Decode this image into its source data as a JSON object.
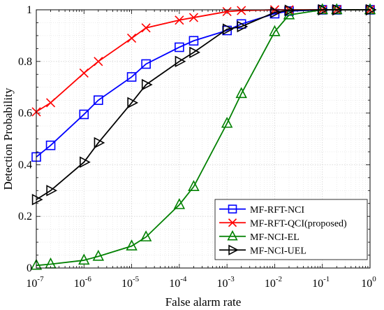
{
  "chart_data": {
    "type": "line",
    "title": "",
    "xlabel": "False alarm rate",
    "ylabel": "Detection Probability",
    "xscale": "log",
    "xlim": [
      1e-07,
      1
    ],
    "ylim": [
      0,
      1
    ],
    "grid": true,
    "legend_position": "bottom-right",
    "x_ticks": [
      {
        "value": 1e-07,
        "base": "10",
        "exp": "-7"
      },
      {
        "value": 1e-06,
        "base": "10",
        "exp": "-6"
      },
      {
        "value": 1e-05,
        "base": "10",
        "exp": "-5"
      },
      {
        "value": 0.0001,
        "base": "10",
        "exp": "-4"
      },
      {
        "value": 0.001,
        "base": "10",
        "exp": "-3"
      },
      {
        "value": 0.01,
        "base": "10",
        "exp": "-2"
      },
      {
        "value": 0.1,
        "base": "10",
        "exp": "-1"
      },
      {
        "value": 1,
        "base": "10",
        "exp": "0"
      }
    ],
    "y_ticks": [
      {
        "value": 0,
        "label": "0"
      },
      {
        "value": 0.2,
        "label": "0.2"
      },
      {
        "value": 0.4,
        "label": "0.4"
      },
      {
        "value": 0.6,
        "label": "0.6"
      },
      {
        "value": 0.8,
        "label": "0.8"
      },
      {
        "value": 1,
        "label": "1"
      }
    ],
    "series": [
      {
        "name": "MF-RFT-NCI",
        "color": "#0000ff",
        "marker": "square",
        "x": [
          1e-07,
          2e-07,
          1e-06,
          2e-06,
          1e-05,
          2e-05,
          0.0001,
          0.0002,
          0.001,
          0.002,
          0.01,
          0.02,
          0.1,
          0.2,
          1
        ],
        "y": [
          0.43,
          0.475,
          0.595,
          0.65,
          0.74,
          0.79,
          0.855,
          0.88,
          0.92,
          0.945,
          0.985,
          0.995,
          1.0,
          1.0,
          1.0
        ]
      },
      {
        "name": "MF-RFT-QCI(proposed)",
        "color": "#ff0000",
        "marker": "x",
        "x": [
          1e-07,
          2e-07,
          1e-06,
          2e-06,
          1e-05,
          2e-05,
          0.0001,
          0.0002,
          0.001,
          0.002,
          0.01,
          0.02,
          0.1,
          0.2,
          1
        ],
        "y": [
          0.605,
          0.64,
          0.755,
          0.8,
          0.89,
          0.93,
          0.96,
          0.97,
          0.993,
          0.997,
          1.0,
          1.0,
          1.0,
          1.0,
          1.0
        ]
      },
      {
        "name": "MF-NCI-EL",
        "color": "#008000",
        "marker": "triangle-up",
        "x": [
          1e-07,
          2e-07,
          1e-06,
          2e-06,
          1e-05,
          2e-05,
          0.0001,
          0.0002,
          0.001,
          0.002,
          0.01,
          0.02,
          0.1,
          0.2,
          1
        ],
        "y": [
          0.01,
          0.015,
          0.03,
          0.045,
          0.085,
          0.12,
          0.245,
          0.315,
          0.56,
          0.675,
          0.915,
          0.98,
          1.0,
          1.0,
          1.0
        ]
      },
      {
        "name": "MF-NCI-UEL",
        "color": "#000000",
        "marker": "triangle-right",
        "x": [
          1e-07,
          2e-07,
          1e-06,
          2e-06,
          1e-05,
          2e-05,
          0.0001,
          0.0002,
          0.001,
          0.002,
          0.01,
          0.02,
          0.1,
          0.2,
          1
        ],
        "y": [
          0.265,
          0.3,
          0.41,
          0.485,
          0.64,
          0.71,
          0.8,
          0.835,
          0.925,
          0.935,
          0.99,
          0.998,
          1.0,
          1.0,
          1.0
        ]
      }
    ]
  }
}
